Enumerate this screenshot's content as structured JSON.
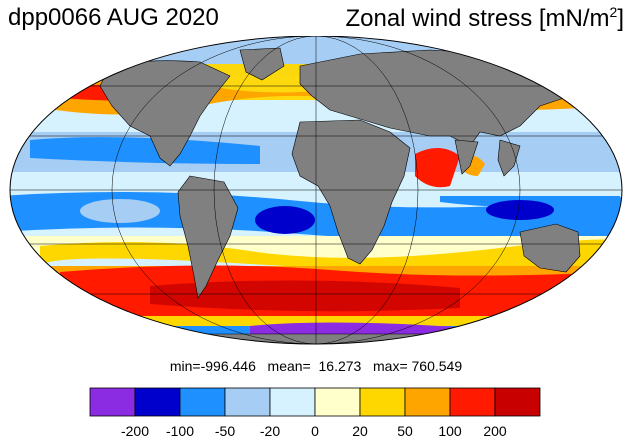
{
  "title": {
    "run": "dpp0066 AUG 2020",
    "variable": "Zonal wind stress [mN/m",
    "variable_sup": "2",
    "variable_close": "]"
  },
  "stats": {
    "text": "min=-996.446   mean=  16.273   max= 760.549"
  },
  "colorbar": {
    "colors": [
      "#8B2BE2",
      "#0000CD",
      "#1E90FF",
      "#A6CEF5",
      "#D6F2FF",
      "#FFFFCC",
      "#FFD700",
      "#FFA500",
      "#FF1A00",
      "#C80000"
    ],
    "ticks": [
      "-200",
      "-100",
      "-50",
      "-20",
      "0",
      "20",
      "50",
      "100",
      "200"
    ]
  },
  "colors": {
    "land": "#808080",
    "background": "#FFFFFF"
  }
}
